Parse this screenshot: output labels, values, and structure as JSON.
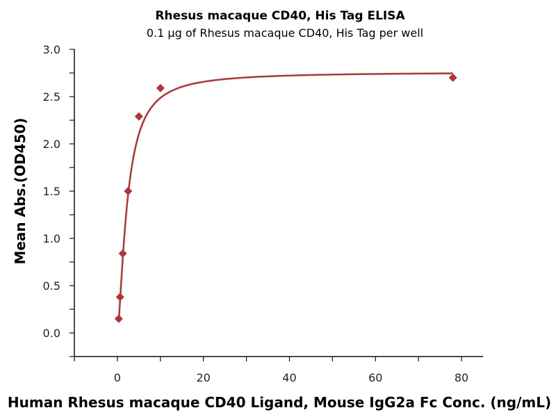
{
  "chart_data": {
    "type": "scatter",
    "title": "Rhesus macaque CD40, His Tag ELISA",
    "subtitle": "0.1 μg of Rhesus macaque CD40, His Tag per well",
    "xlabel": "Human Rhesus macaque CD40 Ligand, Mouse IgG2a Fc Conc. (ng/mL)",
    "ylabel": "Mean Abs.(OD450)",
    "xlim": [
      -10,
      85
    ],
    "ylim": [
      -0.25,
      3.0
    ],
    "xticks": [
      0,
      20,
      40,
      60,
      80
    ],
    "xtick_labels": [
      "0",
      "20",
      "40",
      "60",
      "80"
    ],
    "yticks": [
      0.0,
      0.5,
      1.0,
      1.5,
      2.0,
      2.5,
      3.0
    ],
    "ytick_labels": [
      "0.0",
      "0.5",
      "1.0",
      "1.5",
      "2.0",
      "2.5",
      "3.0"
    ],
    "grid": false,
    "color": "#b83232",
    "series": [
      {
        "name": "Mean Abs.",
        "x": [
          0.3125,
          0.625,
          1.25,
          2.5,
          5,
          10,
          78
        ],
        "y": [
          0.15,
          0.38,
          0.84,
          1.5,
          2.29,
          2.59,
          2.7
        ]
      }
    ],
    "fit": {
      "model": "4PL",
      "bottom": 0.0,
      "top": 2.76,
      "ec50": 2.3,
      "hill": 1.5
    }
  }
}
